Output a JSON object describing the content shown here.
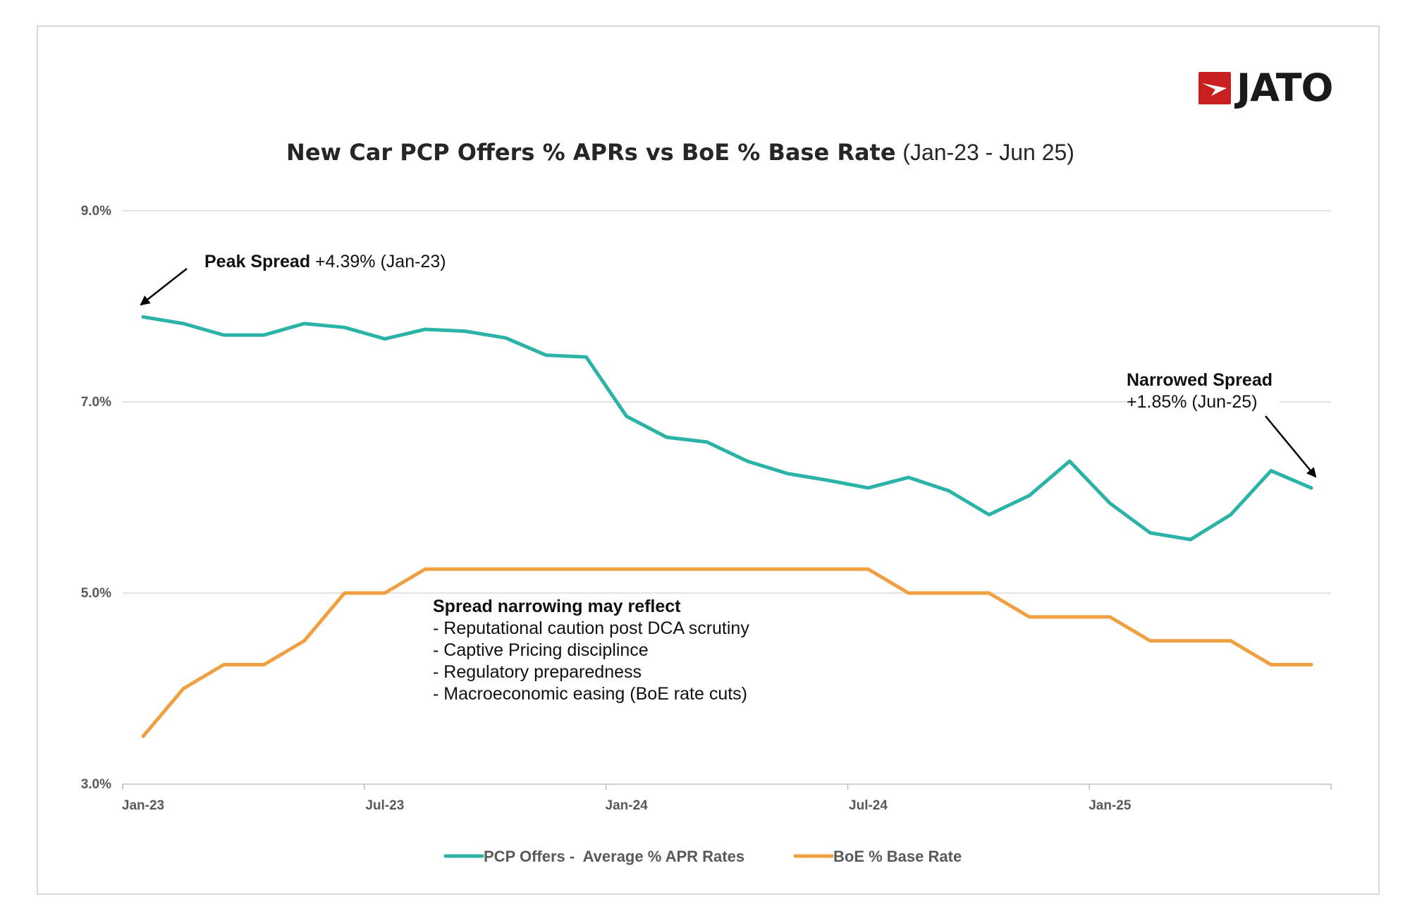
{
  "logo": {
    "text": "JATO",
    "brand_color": "#c8201f"
  },
  "chart_data": {
    "type": "line",
    "title": "New Car PCP Offers % APRs vs BoE % Base Rate",
    "subtitle": "(Jan-23 - Jun 25)",
    "x": [
      "Jan-23",
      "Feb-23",
      "Mar-23",
      "Apr-23",
      "May-23",
      "Jun-23",
      "Jul-23",
      "Aug-23",
      "Sep-23",
      "Oct-23",
      "Nov-23",
      "Dec-23",
      "Jan-24",
      "Feb-24",
      "Mar-24",
      "Apr-24",
      "May-24",
      "Jun-24",
      "Jul-24",
      "Aug-24",
      "Sep-24",
      "Oct-24",
      "Nov-24",
      "Dec-24",
      "Jan-25",
      "Feb-25",
      "Mar-25",
      "Apr-25",
      "May-25",
      "Jun-25"
    ],
    "x_tick_labels": [
      "Jan-23",
      "Jul-23",
      "Jan-24",
      "Jul-24",
      "Jan-25"
    ],
    "y_tick_labels": [
      "9.0%",
      "7.0%",
      "5.0%",
      "3.0%"
    ],
    "y_ticks": [
      9,
      7,
      5,
      3
    ],
    "ylim": [
      3,
      9
    ],
    "grid": true,
    "legend_position": "bottom",
    "series": [
      {
        "name": "PCP Offers -  Average % APR Rates",
        "color": "#2ab3a6",
        "values": [
          7.89,
          7.82,
          7.7,
          7.7,
          7.82,
          7.78,
          7.66,
          7.76,
          7.74,
          7.67,
          7.49,
          7.47,
          6.85,
          6.63,
          6.58,
          6.38,
          6.25,
          6.18,
          6.1,
          6.21,
          6.07,
          5.82,
          6.02,
          6.38,
          5.94,
          5.63,
          5.56,
          5.82,
          6.28,
          6.1
        ]
      },
      {
        "name": "BoE % Base Rate",
        "color": "#f0a040",
        "values": [
          3.5,
          4.0,
          4.25,
          4.25,
          4.5,
          5.0,
          5.0,
          5.25,
          5.25,
          5.25,
          5.25,
          5.25,
          5.25,
          5.25,
          5.25,
          5.25,
          5.25,
          5.25,
          5.25,
          5.0,
          5.0,
          5.0,
          4.75,
          4.75,
          4.75,
          4.5,
          4.5,
          4.5,
          4.25,
          4.25
        ]
      }
    ],
    "annotations": {
      "peak": {
        "label": "Peak Spread",
        "value": "+4.39% (Jan-23)"
      },
      "narrowed": {
        "label": "Narrowed Spread",
        "value": "+1.85% (Jun-25)"
      },
      "note": {
        "heading": "Spread narrowing may reflect",
        "lines": [
          "- Reputational caution post DCA scrutiny",
          "- Captive Pricing disciplince",
          "- Regulatory preparedness",
          "- Macroeconomic easing (BoE rate cuts)"
        ]
      }
    }
  }
}
